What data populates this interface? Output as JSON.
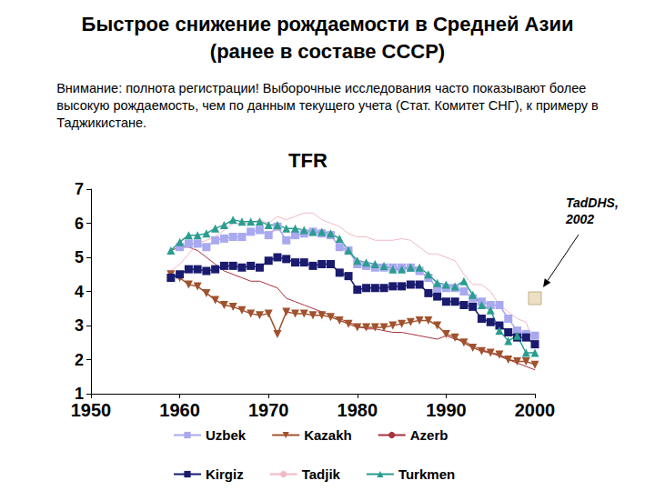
{
  "chart_data": {
    "type": "line",
    "title": "Быстрое снижение рождаемости в Средней Азии\n(ранее в составе СССР)",
    "subtitle": "Внимание: полнота регистрации! Выборочные исследования часто показывают более\nвысокую рождаемость, чем по данным текущего учета (Стат. Комитет СНГ), к примеру в\nТаджикистане.",
    "chart_title": "TFR",
    "x": [
      1959,
      1960,
      1961,
      1962,
      1963,
      1964,
      1965,
      1966,
      1967,
      1968,
      1969,
      1970,
      1971,
      1972,
      1973,
      1974,
      1975,
      1976,
      1977,
      1978,
      1979,
      1980,
      1981,
      1982,
      1983,
      1984,
      1985,
      1986,
      1987,
      1988,
      1989,
      1990,
      1991,
      1992,
      1993,
      1994,
      1995,
      1996,
      1997,
      1998,
      1999,
      2000
    ],
    "series": [
      {
        "name": "Uzbek",
        "color": "#a9a9f0",
        "marker": "square",
        "line_style": "solid",
        "values": [
          null,
          5.3,
          5.4,
          5.4,
          5.3,
          5.5,
          5.55,
          5.6,
          5.6,
          5.75,
          5.8,
          5.65,
          5.9,
          5.5,
          5.65,
          5.7,
          5.75,
          5.7,
          5.65,
          5.3,
          5.2,
          4.8,
          4.75,
          4.7,
          4.7,
          4.7,
          4.7,
          4.7,
          4.6,
          4.4,
          4.1,
          4.1,
          4.1,
          4.0,
          3.8,
          3.7,
          3.6,
          3.6,
          3.2,
          2.85,
          2.75,
          2.7
        ]
      },
      {
        "name": "Kazakh",
        "color": "#a0522d",
        "marker": "triangle-down",
        "line_style": "solid",
        "values": [
          4.5,
          4.4,
          4.2,
          4.15,
          3.95,
          3.75,
          3.6,
          3.55,
          3.45,
          3.35,
          3.3,
          3.35,
          2.75,
          3.4,
          3.35,
          3.35,
          3.3,
          3.3,
          3.25,
          3.15,
          3.05,
          2.95,
          2.95,
          2.95,
          2.95,
          3.0,
          3.05,
          3.1,
          3.15,
          3.15,
          3.0,
          2.75,
          2.65,
          2.5,
          2.35,
          2.25,
          2.2,
          2.15,
          2.0,
          1.95,
          1.95,
          1.85
        ]
      },
      {
        "name": "Azerb",
        "color": "#a8323e",
        "marker": "none",
        "line_style": "solid",
        "values": [
          5.2,
          5.3,
          5.3,
          5.2,
          5.0,
          4.8,
          4.6,
          4.5,
          4.4,
          4.3,
          4.3,
          4.2,
          4.1,
          3.8,
          3.7,
          3.6,
          3.5,
          3.4,
          3.3,
          3.2,
          3.1,
          3.0,
          2.9,
          2.9,
          2.85,
          2.8,
          2.8,
          2.75,
          2.7,
          2.65,
          2.6,
          2.7,
          2.6,
          2.55,
          2.4,
          2.3,
          2.2,
          2.1,
          2.0,
          1.9,
          1.8,
          1.7
        ]
      },
      {
        "name": "Kirgiz",
        "color": "#1a1a6e",
        "marker": "square",
        "line_style": "solid",
        "values": [
          4.4,
          4.5,
          4.65,
          4.65,
          4.6,
          4.65,
          4.75,
          4.75,
          4.7,
          4.75,
          4.7,
          4.9,
          5.0,
          4.95,
          4.85,
          4.85,
          4.75,
          4.8,
          4.8,
          4.55,
          4.45,
          4.05,
          4.1,
          4.1,
          4.1,
          4.15,
          4.15,
          4.2,
          4.2,
          3.95,
          3.85,
          3.7,
          3.7,
          3.6,
          3.55,
          3.2,
          3.1,
          3.0,
          2.8,
          2.65,
          2.65,
          2.45
        ]
      },
      {
        "name": "Tadjik",
        "color": "#f2b8c2",
        "marker": "none",
        "line_style": "solid",
        "values": [
          4.6,
          4.8,
          5.1,
          5.4,
          5.5,
          5.6,
          5.8,
          6.0,
          6.0,
          6.0,
          6.1,
          6.0,
          6.2,
          6.1,
          6.2,
          6.3,
          6.3,
          6.1,
          6.0,
          5.9,
          5.7,
          5.6,
          5.6,
          5.5,
          5.5,
          5.5,
          5.55,
          5.5,
          5.3,
          5.1,
          5.1,
          5.0,
          4.9,
          4.5,
          4.2,
          4.2,
          4.0,
          3.6,
          3.4,
          3.2,
          3.1,
          2.4
        ]
      },
      {
        "name": "Turkmen",
        "color": "#2a9d8f",
        "marker": "triangle",
        "line_style": "solid",
        "values": [
          5.2,
          5.45,
          5.65,
          5.65,
          5.7,
          5.85,
          5.95,
          6.1,
          6.05,
          6.05,
          6.05,
          5.95,
          5.95,
          5.85,
          5.85,
          5.8,
          5.75,
          5.75,
          5.7,
          5.55,
          5.2,
          4.9,
          4.85,
          4.8,
          4.75,
          4.65,
          4.65,
          4.7,
          4.7,
          4.5,
          4.25,
          4.2,
          4.15,
          4.3,
          3.9,
          3.6,
          3.45,
          2.85,
          2.55,
          2.7,
          2.2,
          2.2
        ]
      }
    ],
    "annotations": [
      {
        "text": "TadDHS,\n2002",
        "x": 2000,
        "y": 3.8,
        "marker": "square",
        "color": "#e6d8b4"
      }
    ],
    "xlim": [
      1950,
      2000
    ],
    "xticks": [
      1950,
      1960,
      1970,
      1980,
      1990,
      2000
    ],
    "ylim": [
      1,
      7
    ],
    "yticks": [
      1,
      2,
      3,
      4,
      5,
      6,
      7
    ],
    "grid": false,
    "legend": "bottom"
  }
}
